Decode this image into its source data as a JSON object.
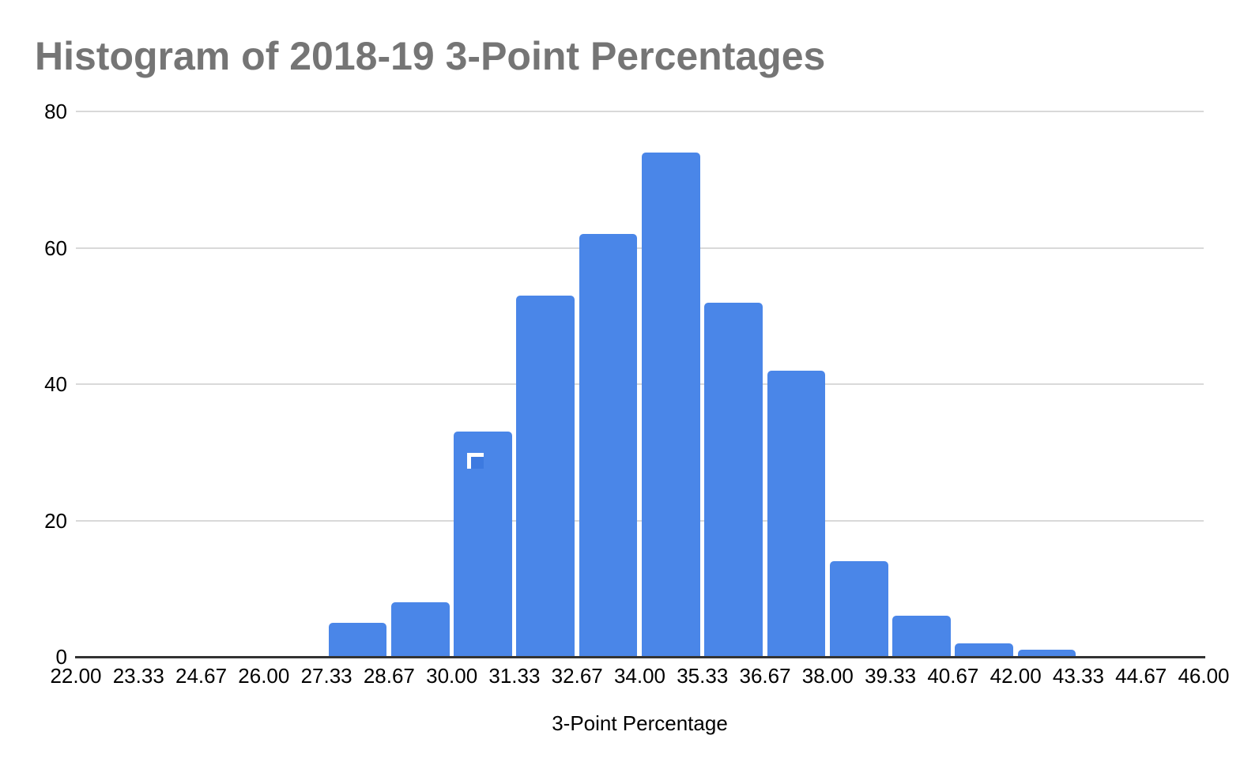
{
  "header": {
    "title": "Histogram of 2018-19 3-Point Percentages"
  },
  "colors": {
    "bar": "#4a86e8",
    "bar_selection_inner": "#3d7ae0",
    "selection_border": "#ffffff",
    "title_text": "#757575",
    "tick_text": "#000000",
    "gridline": "#d9d9d9",
    "axis_line": "#333333",
    "background": "#ffffff"
  },
  "chart_data": {
    "type": "bar",
    "title": "Histogram of 2018-19 3-Point Percentages",
    "xlabel": "3-Point Percentage",
    "ylabel": "",
    "ylim": [
      0,
      80
    ],
    "grid": true,
    "legend": "none",
    "bar_color": "#4a86e8",
    "y_ticks": [
      0,
      20,
      40,
      60,
      80
    ],
    "x_tick_labels": [
      "22.00",
      "23.33",
      "24.67",
      "26.00",
      "27.33",
      "28.67",
      "30.00",
      "31.33",
      "32.67",
      "34.00",
      "35.33",
      "36.67",
      "38.00",
      "39.33",
      "40.67",
      "42.00",
      "43.33",
      "44.67",
      "46.00"
    ],
    "bin_edges": [
      22.0,
      23.33,
      24.67,
      26.0,
      27.33,
      28.67,
      30.0,
      31.33,
      32.67,
      34.0,
      35.33,
      36.67,
      38.0,
      39.33,
      40.67,
      42.0,
      43.33,
      44.67,
      46.0
    ],
    "values": [
      0,
      0,
      0,
      0,
      5,
      8,
      33,
      53,
      62,
      74,
      52,
      42,
      14,
      6,
      2,
      1,
      0,
      0
    ]
  }
}
